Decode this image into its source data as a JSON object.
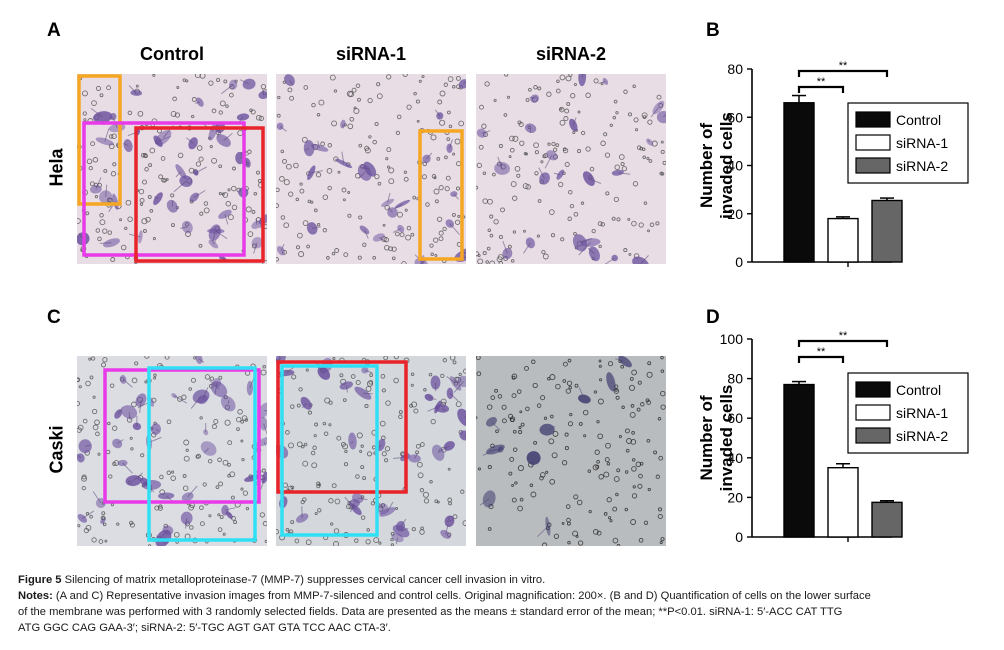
{
  "panels": {
    "a_letter": "A",
    "b_letter": "B",
    "c_letter": "C",
    "d_letter": "D"
  },
  "column_headers": [
    "Control",
    "siRNA-1",
    "siRNA-2"
  ],
  "row_labels": [
    "Hela",
    "Caski"
  ],
  "colors": {
    "hela_bg": "#e8dde4",
    "caski_bg": "#dcdde3",
    "stain": "#6a4f9e",
    "box_orange": "#f5a623",
    "box_magenta": "#e83ae8",
    "box_red": "#e8232a",
    "box_cyan": "#2fe0f5"
  },
  "chart_data": [
    {
      "type": "bar",
      "panel": "B",
      "ylabel": "Number of invaded cells",
      "ylim": [
        0,
        80
      ],
      "yticks": [
        "0",
        "20",
        "40",
        "60",
        "80"
      ],
      "series": [
        {
          "name": "Control",
          "value": 66,
          "error": 3,
          "fill": "#0a0a0a"
        },
        {
          "name": "siRNA-1",
          "value": 18,
          "error": 0.7,
          "fill": "#ffffff"
        },
        {
          "name": "siRNA-2",
          "value": 25.5,
          "error": 1,
          "fill": "#666666"
        }
      ],
      "significance": [
        "**",
        "**"
      ],
      "legend": "right"
    },
    {
      "type": "bar",
      "panel": "D",
      "ylabel": "Number of invaded cells",
      "ylim": [
        0,
        100
      ],
      "yticks": [
        "0",
        "20",
        "40",
        "60",
        "80",
        "100"
      ],
      "series": [
        {
          "name": "Control",
          "value": 77,
          "error": 1.5,
          "fill": "#0a0a0a"
        },
        {
          "name": "siRNA-1",
          "value": 35,
          "error": 2,
          "fill": "#ffffff"
        },
        {
          "name": "siRNA-2",
          "value": 17.5,
          "error": 0.8,
          "fill": "#666666"
        }
      ],
      "significance": [
        "**",
        "**"
      ],
      "legend": "right"
    }
  ],
  "caption": {
    "fig_label": "Figure 5",
    "title": " Silencing of matrix metalloproteinase-7 (MMP-7) suppresses cervical cancer cell invasion in vitro.",
    "notes_label": "Notes:",
    "notes_line1": " (A and C) Representative invasion images from MMP-7-silenced and control cells. Original magnification: 200×. (B and D) Quantification of cells on the lower surface",
    "notes_line2": "of the membrane was performed with 3 randomly selected fields. Data are presented as the means ± standard error of the mean; **P<0.01. siRNA-1: 5′-ACC CAT TTG",
    "notes_line3": "ATG GGC CAG GAA-3′; siRNA-2: 5′-TGC AGT GAT GTA TCC AAC CTA-3′."
  }
}
